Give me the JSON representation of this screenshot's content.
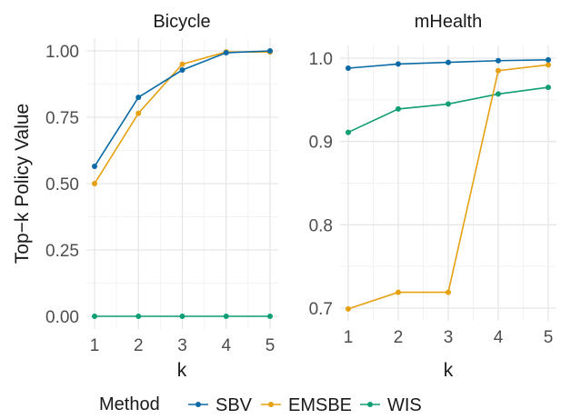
{
  "figure": {
    "ylabel": "Top−k Policy Value",
    "xlabel": "k",
    "legend_title": "Method",
    "legend_placement": "bottom"
  },
  "series_colors": {
    "SBV": "#0a6aa6",
    "EMSBE": "#e6a010",
    "WIS": "#109e74"
  },
  "chart_data": [
    {
      "type": "line",
      "title": "Bicycle",
      "x": [
        1,
        2,
        3,
        4,
        5
      ],
      "xticks": [
        "1",
        "2",
        "3",
        "4",
        "5"
      ],
      "xlim": [
        1,
        5
      ],
      "ylim": [
        0,
        1
      ],
      "yticks": [
        0.0,
        0.25,
        0.5,
        0.75,
        1.0
      ],
      "ytick_labels": [
        "0.00",
        "0.25",
        "0.50",
        "0.75",
        "1.00"
      ],
      "grid": true,
      "series": [
        {
          "name": "SBV",
          "values": [
            0.565,
            0.825,
            0.928,
            0.993,
            1.0
          ]
        },
        {
          "name": "EMSBE",
          "values": [
            0.5,
            0.765,
            0.95,
            0.996,
            0.996
          ]
        },
        {
          "name": "WIS",
          "values": [
            0.0,
            0.0,
            0.0,
            0.0,
            0.0
          ]
        }
      ]
    },
    {
      "type": "line",
      "title": "mHealth",
      "x": [
        1,
        2,
        3,
        4,
        5
      ],
      "xticks": [
        "1",
        "2",
        "3",
        "4",
        "5"
      ],
      "xlim": [
        1,
        5
      ],
      "ylim": [
        0.7,
        1.0
      ],
      "yticks": [
        0.7,
        0.8,
        0.9,
        1.0
      ],
      "ytick_labels": [
        "0.7",
        "0.8",
        "0.9",
        "1.0"
      ],
      "grid": true,
      "series": [
        {
          "name": "SBV",
          "values": [
            0.988,
            0.993,
            0.995,
            0.997,
            0.998
          ]
        },
        {
          "name": "EMSBE",
          "values": [
            0.699,
            0.719,
            0.719,
            0.985,
            0.992
          ]
        },
        {
          "name": "WIS",
          "values": [
            0.911,
            0.939,
            0.945,
            0.957,
            0.965
          ]
        }
      ]
    }
  ]
}
